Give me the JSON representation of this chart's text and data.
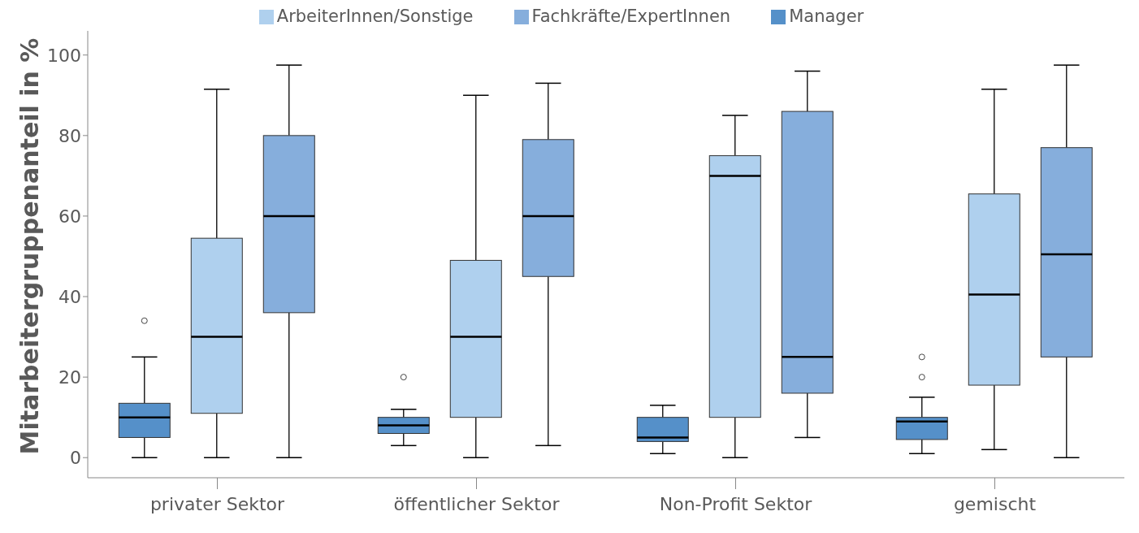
{
  "chart_data": {
    "type": "box",
    "ylabel": "Mitarbeitergruppenanteil in %",
    "categories": [
      "privater Sektor",
      "öffentlicher Sektor",
      "Non-Profit Sektor",
      "gemischt"
    ],
    "series": [
      {
        "name": "Manager",
        "color": "#5590c9",
        "boxes": [
          {
            "low": 0,
            "q1": 5,
            "median": 10,
            "q3": 13.5,
            "high": 25,
            "outliers": [
              34
            ]
          },
          {
            "low": 3,
            "q1": 6,
            "median": 8,
            "q3": 10,
            "high": 12,
            "outliers": [
              20
            ]
          },
          {
            "low": 1,
            "q1": 4,
            "median": 5,
            "q3": 10,
            "high": 13
          },
          {
            "low": 1,
            "q1": 4.5,
            "median": 9,
            "q3": 10,
            "high": 15,
            "outliers": [
              20,
              25
            ]
          }
        ]
      },
      {
        "name": "ArbeiterInnen/Sonstige",
        "color": "#afd0ee",
        "boxes": [
          {
            "low": 0,
            "q1": 11,
            "median": 30,
            "q3": 54.5,
            "high": 91.5
          },
          {
            "low": 0,
            "q1": 10,
            "median": 30,
            "q3": 49,
            "high": 90
          },
          {
            "low": 0,
            "q1": 10,
            "median": 70,
            "q3": 75,
            "high": 85
          },
          {
            "low": 2,
            "q1": 18,
            "median": 40.5,
            "q3": 65.5,
            "high": 91.5
          }
        ]
      },
      {
        "name": "Fachkräfte/ExpertInnen",
        "color": "#86aedc",
        "boxes": [
          {
            "low": 0,
            "q1": 36,
            "median": 60,
            "q3": 80,
            "high": 97.5
          },
          {
            "low": 3,
            "q1": 45,
            "median": 60,
            "q3": 79,
            "high": 93
          },
          {
            "low": 5,
            "q1": 16,
            "median": 25,
            "q3": 86,
            "high": 96
          },
          {
            "low": 0,
            "q1": 25,
            "median": 50.5,
            "q3": 77,
            "high": 97.5
          }
        ]
      }
    ],
    "ylim": [
      -5,
      106
    ],
    "yticks": [
      0,
      20,
      40,
      60,
      80,
      100
    ],
    "legend": "top"
  }
}
